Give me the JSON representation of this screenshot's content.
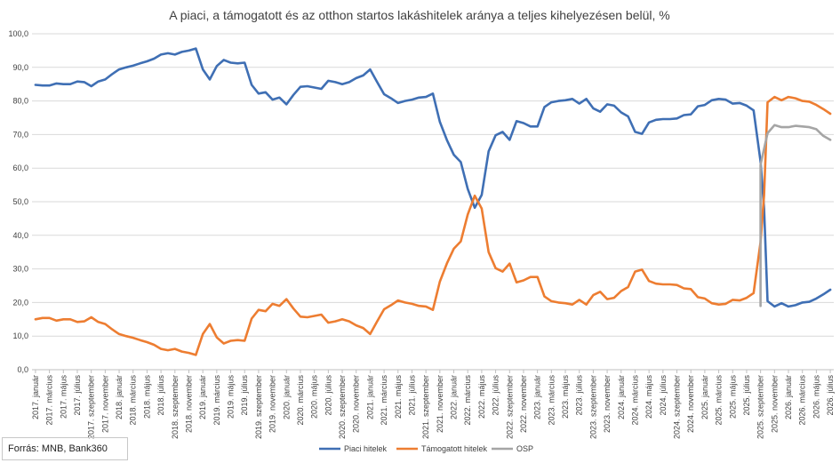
{
  "chart_data": {
    "type": "line",
    "title": "A piaci, a támogatott és az otthon startos lakáshitelek  aránya a teljes kihelyezésen  belül, %",
    "ylim": [
      0,
      100
    ],
    "yticks": [
      "0,0",
      "10,0",
      "20,0",
      "30,0",
      "40,0",
      "50,0",
      "60,0",
      "70,0",
      "80,0",
      "90,0",
      "100,0"
    ],
    "x_labels": [
      "2017. január",
      "2017. március",
      "2017. május",
      "2017. július",
      "2017. szeptember",
      "2017. november",
      "2018. január",
      "2018. március",
      "2018. május",
      "2018. július",
      "2018. szeptember",
      "2018. november",
      "2019. január",
      "2019. március",
      "2019. május",
      "2019. július",
      "2019. szeptember",
      "2019. november",
      "2020. január",
      "2020. március",
      "2020. május",
      "2020. július",
      "2020. szeptember",
      "2020. november",
      "2021. január",
      "2021. március",
      "2021. május",
      "2021. július",
      "2021. szeptember",
      "2021. november",
      "2022. január",
      "2022. március",
      "2022. május",
      "2022. július",
      "2022. szeptember",
      "2022. november",
      "2023. január",
      "2023. március",
      "2023. május",
      "2023. július",
      "2023. szeptember",
      "2023. november",
      "2024. január",
      "2024. március",
      "2024. május",
      "2024. július",
      "2024. szeptember",
      "2024. november",
      "2025. január",
      "2025. március",
      "2025. május",
      "2025. július",
      "2025. szeptember",
      "2025. november",
      "2026. január",
      "2026. március",
      "2026. május",
      "2026. július"
    ],
    "grid": true,
    "legend_position": "bottom",
    "series": [
      {
        "name": "Piaci hitelek",
        "color": "#3f6fb4",
        "values": [
          [
            0,
            84.8
          ],
          [
            1,
            84.6
          ],
          [
            2,
            84.6
          ],
          [
            3,
            85.2
          ],
          [
            4,
            85.0
          ],
          [
            5,
            85.0
          ],
          [
            6,
            85.8
          ],
          [
            7,
            85.6
          ],
          [
            8,
            84.4
          ],
          [
            9,
            85.8
          ],
          [
            10,
            86.4
          ],
          [
            11,
            88.0
          ],
          [
            12,
            89.4
          ],
          [
            13,
            90.0
          ],
          [
            14,
            90.5
          ],
          [
            15,
            91.2
          ],
          [
            16,
            91.8
          ],
          [
            17,
            92.6
          ],
          [
            18,
            93.8
          ],
          [
            19,
            94.2
          ],
          [
            20,
            93.8
          ],
          [
            21,
            94.6
          ],
          [
            22,
            95.0
          ],
          [
            23,
            95.6
          ],
          [
            24,
            89.4
          ],
          [
            25,
            86.4
          ],
          [
            26,
            90.4
          ],
          [
            27,
            92.2
          ],
          [
            28,
            91.4
          ],
          [
            29,
            91.2
          ],
          [
            30,
            91.4
          ],
          [
            31,
            84.8
          ],
          [
            32,
            82.2
          ],
          [
            33,
            82.6
          ],
          [
            34,
            80.4
          ],
          [
            35,
            81.0
          ],
          [
            36,
            79.0
          ],
          [
            37,
            81.8
          ],
          [
            38,
            84.2
          ],
          [
            39,
            84.4
          ],
          [
            40,
            84.0
          ],
          [
            41,
            83.6
          ],
          [
            42,
            86.0
          ],
          [
            43,
            85.6
          ],
          [
            44,
            85.0
          ],
          [
            45,
            85.6
          ],
          [
            46,
            86.8
          ],
          [
            47,
            87.6
          ],
          [
            48,
            89.4
          ],
          [
            49,
            85.6
          ],
          [
            50,
            82.0
          ],
          [
            51,
            80.8
          ],
          [
            52,
            79.4
          ],
          [
            53,
            80.0
          ],
          [
            54,
            80.4
          ],
          [
            55,
            81.0
          ],
          [
            56,
            81.2
          ],
          [
            57,
            82.2
          ],
          [
            58,
            73.8
          ],
          [
            59,
            68.4
          ],
          [
            60,
            64.0
          ],
          [
            61,
            61.8
          ],
          [
            62,
            53.8
          ],
          [
            63,
            48.2
          ],
          [
            64,
            52.0
          ],
          [
            65,
            65.0
          ],
          [
            66,
            69.8
          ],
          [
            67,
            70.8
          ],
          [
            68,
            68.4
          ],
          [
            69,
            74.0
          ],
          [
            70,
            73.4
          ],
          [
            71,
            72.4
          ],
          [
            72,
            72.4
          ],
          [
            73,
            78.2
          ],
          [
            74,
            79.6
          ],
          [
            75,
            80.0
          ],
          [
            76,
            80.2
          ],
          [
            77,
            80.6
          ],
          [
            78,
            79.2
          ],
          [
            79,
            80.6
          ],
          [
            80,
            77.8
          ],
          [
            81,
            76.8
          ],
          [
            82,
            79.0
          ],
          [
            83,
            78.6
          ],
          [
            84,
            76.6
          ],
          [
            85,
            75.4
          ],
          [
            86,
            70.8
          ],
          [
            87,
            70.2
          ],
          [
            88,
            73.6
          ],
          [
            89,
            74.4
          ],
          [
            90,
            74.6
          ],
          [
            91,
            74.6
          ],
          [
            92,
            74.8
          ],
          [
            93,
            75.8
          ],
          [
            94,
            76.0
          ],
          [
            95,
            78.4
          ],
          [
            96,
            78.8
          ],
          [
            97,
            80.2
          ],
          [
            98,
            80.6
          ],
          [
            99,
            80.4
          ],
          [
            100,
            79.2
          ],
          [
            101,
            79.4
          ],
          [
            102,
            78.6
          ],
          [
            103,
            77.2
          ],
          [
            104,
            62.0
          ],
          [
            104.5,
            48.0
          ],
          [
            105,
            20.4
          ],
          [
            106,
            18.8
          ],
          [
            107,
            19.8
          ],
          [
            108,
            18.8
          ],
          [
            109,
            19.2
          ],
          [
            110,
            20.0
          ],
          [
            111,
            20.2
          ],
          [
            112,
            21.2
          ],
          [
            113,
            22.4
          ],
          [
            114,
            23.8
          ]
        ]
      },
      {
        "name": "Támogatott hitelek",
        "color": "#ed7d31",
        "values": [
          [
            0,
            15.0
          ],
          [
            1,
            15.4
          ],
          [
            2,
            15.4
          ],
          [
            3,
            14.6
          ],
          [
            4,
            15.0
          ],
          [
            5,
            15.0
          ],
          [
            6,
            14.2
          ],
          [
            7,
            14.4
          ],
          [
            8,
            15.6
          ],
          [
            9,
            14.2
          ],
          [
            10,
            13.6
          ],
          [
            11,
            12.0
          ],
          [
            12,
            10.6
          ],
          [
            13,
            10.0
          ],
          [
            14,
            9.5
          ],
          [
            15,
            8.8
          ],
          [
            16,
            8.2
          ],
          [
            17,
            7.4
          ],
          [
            18,
            6.2
          ],
          [
            19,
            5.8
          ],
          [
            20,
            6.2
          ],
          [
            21,
            5.4
          ],
          [
            22,
            5.0
          ],
          [
            23,
            4.4
          ],
          [
            24,
            10.6
          ],
          [
            25,
            13.6
          ],
          [
            26,
            9.6
          ],
          [
            27,
            7.8
          ],
          [
            28,
            8.6
          ],
          [
            29,
            8.8
          ],
          [
            30,
            8.6
          ],
          [
            31,
            15.2
          ],
          [
            32,
            17.8
          ],
          [
            33,
            17.4
          ],
          [
            34,
            19.6
          ],
          [
            35,
            19.0
          ],
          [
            36,
            21.0
          ],
          [
            37,
            18.2
          ],
          [
            38,
            15.8
          ],
          [
            39,
            15.6
          ],
          [
            40,
            16.0
          ],
          [
            41,
            16.4
          ],
          [
            42,
            14.0
          ],
          [
            43,
            14.4
          ],
          [
            44,
            15.0
          ],
          [
            45,
            14.4
          ],
          [
            46,
            13.2
          ],
          [
            47,
            12.4
          ],
          [
            48,
            10.6
          ],
          [
            49,
            14.4
          ],
          [
            50,
            18.0
          ],
          [
            51,
            19.2
          ],
          [
            52,
            20.6
          ],
          [
            53,
            20.0
          ],
          [
            54,
            19.6
          ],
          [
            55,
            19.0
          ],
          [
            56,
            18.8
          ],
          [
            57,
            17.8
          ],
          [
            58,
            26.2
          ],
          [
            59,
            31.6
          ],
          [
            60,
            36.0
          ],
          [
            61,
            38.2
          ],
          [
            62,
            46.2
          ],
          [
            63,
            51.8
          ],
          [
            64,
            48.0
          ],
          [
            65,
            35.0
          ],
          [
            66,
            30.2
          ],
          [
            67,
            29.2
          ],
          [
            68,
            31.6
          ],
          [
            69,
            26.0
          ],
          [
            70,
            26.6
          ],
          [
            71,
            27.6
          ],
          [
            72,
            27.6
          ],
          [
            73,
            21.8
          ],
          [
            74,
            20.4
          ],
          [
            75,
            20.0
          ],
          [
            76,
            19.8
          ],
          [
            77,
            19.4
          ],
          [
            78,
            20.8
          ],
          [
            79,
            19.4
          ],
          [
            80,
            22.2
          ],
          [
            81,
            23.2
          ],
          [
            82,
            21.0
          ],
          [
            83,
            21.4
          ],
          [
            84,
            23.4
          ],
          [
            85,
            24.6
          ],
          [
            86,
            29.2
          ],
          [
            87,
            29.8
          ],
          [
            88,
            26.4
          ],
          [
            89,
            25.6
          ],
          [
            90,
            25.4
          ],
          [
            91,
            25.4
          ],
          [
            92,
            25.2
          ],
          [
            93,
            24.2
          ],
          [
            94,
            24.0
          ],
          [
            95,
            21.6
          ],
          [
            96,
            21.2
          ],
          [
            97,
            19.8
          ],
          [
            98,
            19.4
          ],
          [
            99,
            19.6
          ],
          [
            100,
            20.8
          ],
          [
            101,
            20.6
          ],
          [
            102,
            21.4
          ],
          [
            103,
            22.8
          ],
          [
            104,
            38.0
          ],
          [
            104.5,
            52.0
          ],
          [
            105,
            79.6
          ],
          [
            106,
            81.2
          ],
          [
            107,
            80.2
          ],
          [
            108,
            81.2
          ],
          [
            109,
            80.8
          ],
          [
            110,
            80.0
          ],
          [
            111,
            79.8
          ],
          [
            112,
            78.8
          ],
          [
            113,
            77.6
          ],
          [
            114,
            76.2
          ]
        ]
      },
      {
        "name": "OSP",
        "color": "#a5a5a5",
        "values": [
          [
            104,
            19.0
          ],
          [
            104,
            61.0
          ],
          [
            105,
            70.4
          ],
          [
            106,
            72.8
          ],
          [
            107,
            72.2
          ],
          [
            108,
            72.2
          ],
          [
            109,
            72.6
          ],
          [
            110,
            72.4
          ],
          [
            111,
            72.2
          ],
          [
            112,
            71.6
          ],
          [
            113,
            69.6
          ],
          [
            114,
            68.4
          ]
        ]
      }
    ]
  },
  "source": {
    "text": "Forrás: MNB, Bank360"
  }
}
